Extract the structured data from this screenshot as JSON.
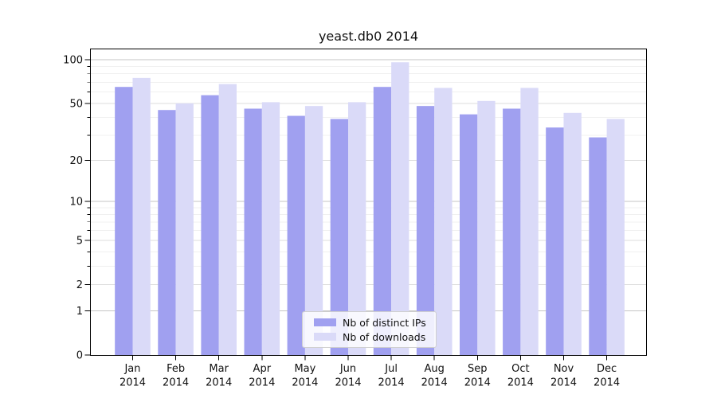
{
  "chart_data": {
    "type": "bar",
    "title": "yeast.db0 2014",
    "year": "2014",
    "categories": [
      "Jan",
      "Feb",
      "Mar",
      "Apr",
      "May",
      "Jun",
      "Jul",
      "Aug",
      "Sep",
      "Oct",
      "Nov",
      "Dec"
    ],
    "series": [
      {
        "name": "Nb of distinct IPs",
        "color": "#a0a0f0",
        "values": [
          65,
          45,
          57,
          46,
          41,
          39,
          65,
          48,
          42,
          46,
          34,
          29
        ]
      },
      {
        "name": "Nb of downloads",
        "color": "#dadaf8",
        "values": [
          75,
          50,
          68,
          51,
          48,
          51,
          96,
          64,
          52,
          64,
          43,
          39
        ]
      }
    ],
    "xlabel": "",
    "ylabel": "",
    "yscale": "symlog",
    "ylim": [
      0,
      120
    ],
    "yticks": [
      0,
      1,
      2,
      5,
      10,
      20,
      50,
      100
    ],
    "yticks_minor": [
      3,
      4,
      6,
      7,
      8,
      9,
      30,
      40,
      60,
      70,
      80,
      90
    ],
    "grid": "horizontal",
    "legend_position": "lower center",
    "colors": {
      "grid_decade": "#c6c6c6",
      "grid_labeled": "#dedede",
      "grid_minor": "#f0f0f0",
      "axis": "#000000",
      "text": "#111111"
    }
  }
}
